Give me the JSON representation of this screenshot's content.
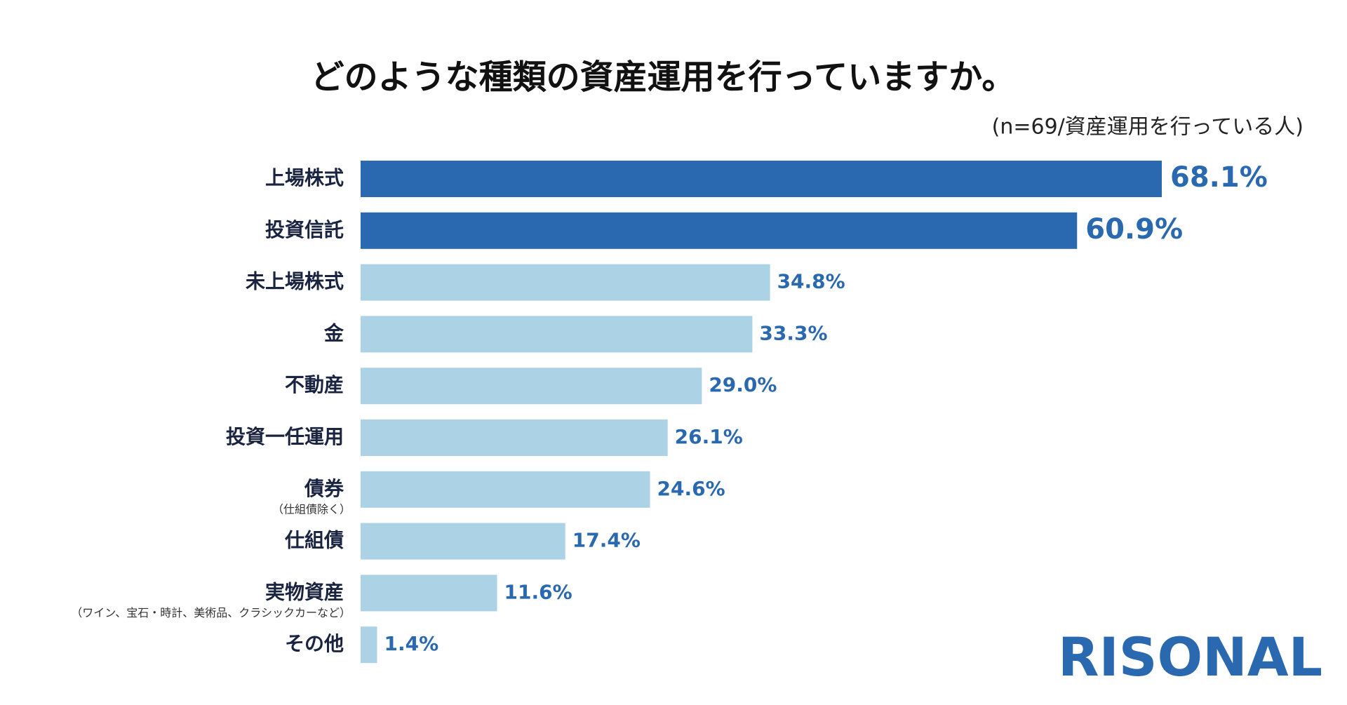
{
  "chart_data": {
    "type": "hbar",
    "title": "どのような種類の資産運用を行っていますか。",
    "subtitle": "(n=69/資産運用を行っている人)",
    "categories": [
      "上場株式",
      "投資信託",
      "未上場株式",
      "金",
      "不動産",
      "投資一任運用",
      "債券",
      "仕組債",
      "実物資産",
      "その他"
    ],
    "category_notes": [
      null,
      null,
      null,
      null,
      null,
      null,
      "（仕組債除く）",
      null,
      "（ワイン、宝石・時計、美術品、クラシックカーなど）",
      null
    ],
    "values": [
      68.1,
      60.9,
      34.8,
      33.3,
      29.0,
      26.1,
      24.6,
      17.4,
      11.6,
      1.4
    ],
    "value_labels": [
      "68.1%",
      "60.9%",
      "34.8%",
      "33.3%",
      "29.0%",
      "26.1%",
      "24.6%",
      "17.4%",
      "11.6%",
      "1.4%"
    ],
    "colors": [
      "#2a69b0",
      "#2a69b0",
      "#acd2e6",
      "#acd2e6",
      "#acd2e6",
      "#acd2e6",
      "#acd2e6",
      "#acd2e6",
      "#acd2e6",
      "#acd2e6"
    ],
    "label_color": "#2a69b0",
    "brand": "RISONAL"
  }
}
